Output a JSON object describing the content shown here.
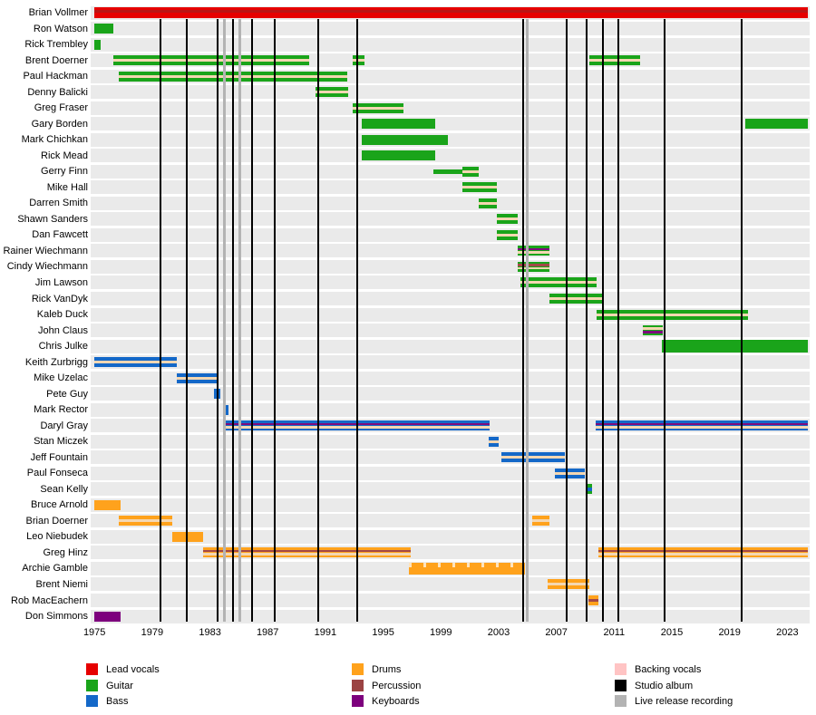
{
  "chart_data": {
    "type": "timeline",
    "title": "Band members timeline (Gantt-style)",
    "x_axis": {
      "ticks": [
        1975,
        1979,
        1983,
        1987,
        1991,
        1995,
        1999,
        2003,
        2007,
        2011,
        2015,
        2019,
        2023
      ],
      "min": 1974.75,
      "max": 2024.45
    },
    "role_colors": {
      "lead": "#e60000",
      "guitar": "#1aa41a",
      "bass": "#1468c8",
      "drums": "#ffa21c",
      "percussion": "#9b4343",
      "keyboards": "#7d007d",
      "backing": "#ffc4c4",
      "studio_album": "#000000",
      "live_release": "#b3b3b3"
    },
    "stripe_colors": {
      "backing": "#f4d7b2",
      "keyboards": "#7d0c7d",
      "percussion": "#a34848",
      "darkred": "#bb1414"
    },
    "studio_album_years": [
      1979.6,
      1981.4,
      1983.5,
      1984.6,
      1985.9,
      1987.5,
      1990.5,
      1993.2,
      2004.7,
      2007.7,
      2009.1,
      2010.2,
      2011.3,
      2014.5,
      2019.85
    ],
    "live_release_years": [
      1984.0,
      1985.05,
      2005.0
    ],
    "members": [
      {
        "name": "Brian Vollmer",
        "segments": [
          {
            "from": 1975.0,
            "to": 2024.4,
            "role": "lead",
            "stripes": [
              "darkred"
            ],
            "h": 12,
            "top": true
          }
        ]
      },
      {
        "name": "Ron Watson",
        "segments": [
          {
            "from": 1975.0,
            "to": 1976.3,
            "role": "guitar"
          }
        ]
      },
      {
        "name": "Rick Trembley",
        "segments": [
          {
            "from": 1975.0,
            "to": 1975.4,
            "role": "guitar"
          }
        ]
      },
      {
        "name": "Brent Doerner",
        "segments": [
          {
            "from": 1976.3,
            "to": 1989.9,
            "role": "guitar",
            "stripes": [
              "backing"
            ]
          },
          {
            "from": 1992.9,
            "to": 1993.7,
            "role": "guitar",
            "stripes": [
              "backing"
            ]
          },
          {
            "from": 2009.3,
            "to": 2012.8,
            "role": "guitar",
            "stripes": [
              "backing"
            ]
          }
        ]
      },
      {
        "name": "Paul Hackman",
        "segments": [
          {
            "from": 1976.7,
            "to": 1992.5,
            "role": "guitar",
            "stripes": [
              "backing"
            ]
          }
        ]
      },
      {
        "name": "Denny Balicki",
        "segments": [
          {
            "from": 1990.3,
            "to": 1992.6,
            "role": "guitar",
            "stripes": [
              "backing"
            ]
          }
        ]
      },
      {
        "name": "Greg Fraser",
        "segments": [
          {
            "from": 1992.9,
            "to": 1996.4,
            "role": "guitar",
            "stripes": [
              "backing"
            ]
          }
        ]
      },
      {
        "name": "Gary Borden",
        "segments": [
          {
            "from": 1993.5,
            "to": 1998.6,
            "role": "guitar"
          },
          {
            "from": 2020.1,
            "to": 2024.4,
            "role": "guitar"
          }
        ]
      },
      {
        "name": "Mark Chichkan",
        "segments": [
          {
            "from": 1993.5,
            "to": 1999.5,
            "role": "guitar"
          }
        ]
      },
      {
        "name": "Rick Mead",
        "segments": [
          {
            "from": 1993.5,
            "to": 1998.6,
            "role": "guitar"
          }
        ]
      },
      {
        "name": "Gerry Finn",
        "segments": [
          {
            "from": 1998.5,
            "to": 2000.5,
            "role": "guitar",
            "h": 5
          },
          {
            "from": 2000.5,
            "to": 2001.6,
            "role": "guitar",
            "stripes": [
              "backing"
            ]
          }
        ]
      },
      {
        "name": "Mike Hall",
        "segments": [
          {
            "from": 2000.5,
            "to": 2002.9,
            "role": "guitar",
            "stripes": [
              "backing"
            ]
          }
        ]
      },
      {
        "name": "Darren Smith",
        "segments": [
          {
            "from": 2001.6,
            "to": 2002.9,
            "role": "guitar",
            "stripes": [
              "backing"
            ]
          }
        ]
      },
      {
        "name": "Shawn Sanders",
        "segments": [
          {
            "from": 2002.9,
            "to": 2004.3,
            "role": "guitar",
            "stripes": [
              "backing"
            ]
          }
        ]
      },
      {
        "name": "Dan Fawcett",
        "segments": [
          {
            "from": 2002.9,
            "to": 2004.3,
            "role": "guitar",
            "stripes": [
              "backing"
            ]
          }
        ]
      },
      {
        "name": "Rainer Wiechmann",
        "segments": [
          {
            "from": 2004.3,
            "to": 2006.5,
            "role": "guitar",
            "stripes": [
              "keyboards",
              "backing"
            ]
          }
        ]
      },
      {
        "name": "Cindy Wiechmann",
        "segments": [
          {
            "from": 2004.3,
            "to": 2006.5,
            "role": "guitar",
            "stripes": [
              "percussion",
              "backing"
            ]
          }
        ]
      },
      {
        "name": "Jim Lawson",
        "segments": [
          {
            "from": 2004.5,
            "to": 2009.8,
            "role": "guitar",
            "stripes": [
              "backing"
            ]
          }
        ]
      },
      {
        "name": "Rick VanDyk",
        "segments": [
          {
            "from": 2006.5,
            "to": 2010.2,
            "role": "guitar",
            "stripes": [
              "backing"
            ]
          }
        ]
      },
      {
        "name": "Kaleb Duck",
        "segments": [
          {
            "from": 2009.8,
            "to": 2020.3,
            "role": "guitar",
            "stripes": [
              "backing"
            ]
          }
        ]
      },
      {
        "name": "John Claus",
        "segments": [
          {
            "from": 2013.0,
            "to": 2014.4,
            "role": "guitar",
            "stripes": [
              "backing",
              "keyboards"
            ]
          }
        ]
      },
      {
        "name": "Chris Julke",
        "segments": [
          {
            "from": 2014.3,
            "to": 2024.4,
            "role": "guitar",
            "h": 14
          }
        ]
      },
      {
        "name": "Keith Zurbrigg",
        "segments": [
          {
            "from": 1975.0,
            "to": 1980.7,
            "role": "bass",
            "stripes": [
              "backing"
            ]
          }
        ]
      },
      {
        "name": "Mike Uzelac",
        "segments": [
          {
            "from": 1980.7,
            "to": 1983.6,
            "role": "bass",
            "stripes": [
              "backing"
            ]
          }
        ]
      },
      {
        "name": "Pete Guy",
        "segments": [
          {
            "from": 1983.3,
            "to": 1983.7,
            "role": "bass"
          }
        ]
      },
      {
        "name": "Mark Rector",
        "segments": [
          {
            "from": 1983.9,
            "to": 1984.3,
            "role": "bass"
          }
        ]
      },
      {
        "name": "Daryl Gray",
        "segments": [
          {
            "from": 1984.0,
            "to": 2002.4,
            "role": "bass",
            "stripes": [
              "keyboards",
              "backing"
            ]
          },
          {
            "from": 2009.7,
            "to": 2024.4,
            "role": "bass",
            "stripes": [
              "keyboards",
              "backing"
            ]
          }
        ]
      },
      {
        "name": "Stan Miczek",
        "segments": [
          {
            "from": 2002.3,
            "to": 2003.0,
            "role": "bass",
            "stripes": [
              "backing"
            ]
          }
        ]
      },
      {
        "name": "Jeff Fountain",
        "segments": [
          {
            "from": 2003.2,
            "to": 2007.6,
            "role": "bass",
            "stripes": [
              "backing"
            ]
          }
        ]
      },
      {
        "name": "Paul Fonseca",
        "segments": [
          {
            "from": 2006.9,
            "to": 2009.0,
            "role": "bass",
            "stripes": [
              "backing"
            ]
          }
        ]
      },
      {
        "name": "Sean Kelly",
        "segments": [
          {
            "from": 2009.1,
            "to": 2009.5,
            "bands": [
              "guitar",
              "bass",
              "guitar"
            ]
          }
        ]
      },
      {
        "name": "Bruce Arnold",
        "segments": [
          {
            "from": 1975.0,
            "to": 1976.8,
            "role": "drums"
          }
        ]
      },
      {
        "name": "Brian Doerner",
        "segments": [
          {
            "from": 1976.7,
            "to": 1980.4,
            "role": "drums",
            "stripes": [
              "backing"
            ]
          },
          {
            "from": 2005.3,
            "to": 2006.5,
            "role": "drums",
            "stripes": [
              "backing"
            ]
          }
        ]
      },
      {
        "name": "Leo Niebudek",
        "segments": [
          {
            "from": 1980.4,
            "to": 1982.5,
            "role": "drums"
          }
        ]
      },
      {
        "name": "Greg Hinz",
        "segments": [
          {
            "from": 1982.5,
            "to": 1996.9,
            "role": "drums",
            "stripes": [
              "percussion",
              "backing"
            ]
          },
          {
            "from": 2009.9,
            "to": 2024.4,
            "role": "drums",
            "stripes": [
              "percussion",
              "backing"
            ]
          }
        ]
      },
      {
        "name": "Archie Gamble",
        "segments": [
          {
            "from": 1996.8,
            "to": 2004.8,
            "role": "drums",
            "pattern": "scalloped",
            "h": 13
          }
        ]
      },
      {
        "name": "Brent Niemi",
        "segments": [
          {
            "from": 2006.4,
            "to": 2009.3,
            "role": "drums",
            "stripes": [
              "backing"
            ]
          }
        ]
      },
      {
        "name": "Rob MacEachern",
        "segments": [
          {
            "from": 2009.2,
            "to": 2009.9,
            "role": "drums",
            "stripes": [
              "percussion"
            ]
          }
        ]
      },
      {
        "name": "Don Simmons",
        "segments": [
          {
            "from": 1975.0,
            "to": 1976.8,
            "role": "keyboards"
          }
        ]
      }
    ]
  },
  "legend": {
    "columns": [
      [
        {
          "label": "Lead vocals",
          "color": "#e60000"
        },
        {
          "label": "Guitar",
          "color": "#1aa41a"
        },
        {
          "label": "Bass",
          "color": "#1468c8"
        }
      ],
      [
        {
          "label": "Drums",
          "color": "#ffa21c"
        },
        {
          "label": "Percussion",
          "color": "#9b4343"
        },
        {
          "label": "Keyboards",
          "color": "#7d007d"
        }
      ],
      [
        {
          "label": "Backing vocals",
          "color": "#ffc4c4"
        },
        {
          "label": "Studio album",
          "color": "#000000"
        },
        {
          "label": "Live release recording",
          "color": "#b3b3b3"
        }
      ]
    ]
  }
}
